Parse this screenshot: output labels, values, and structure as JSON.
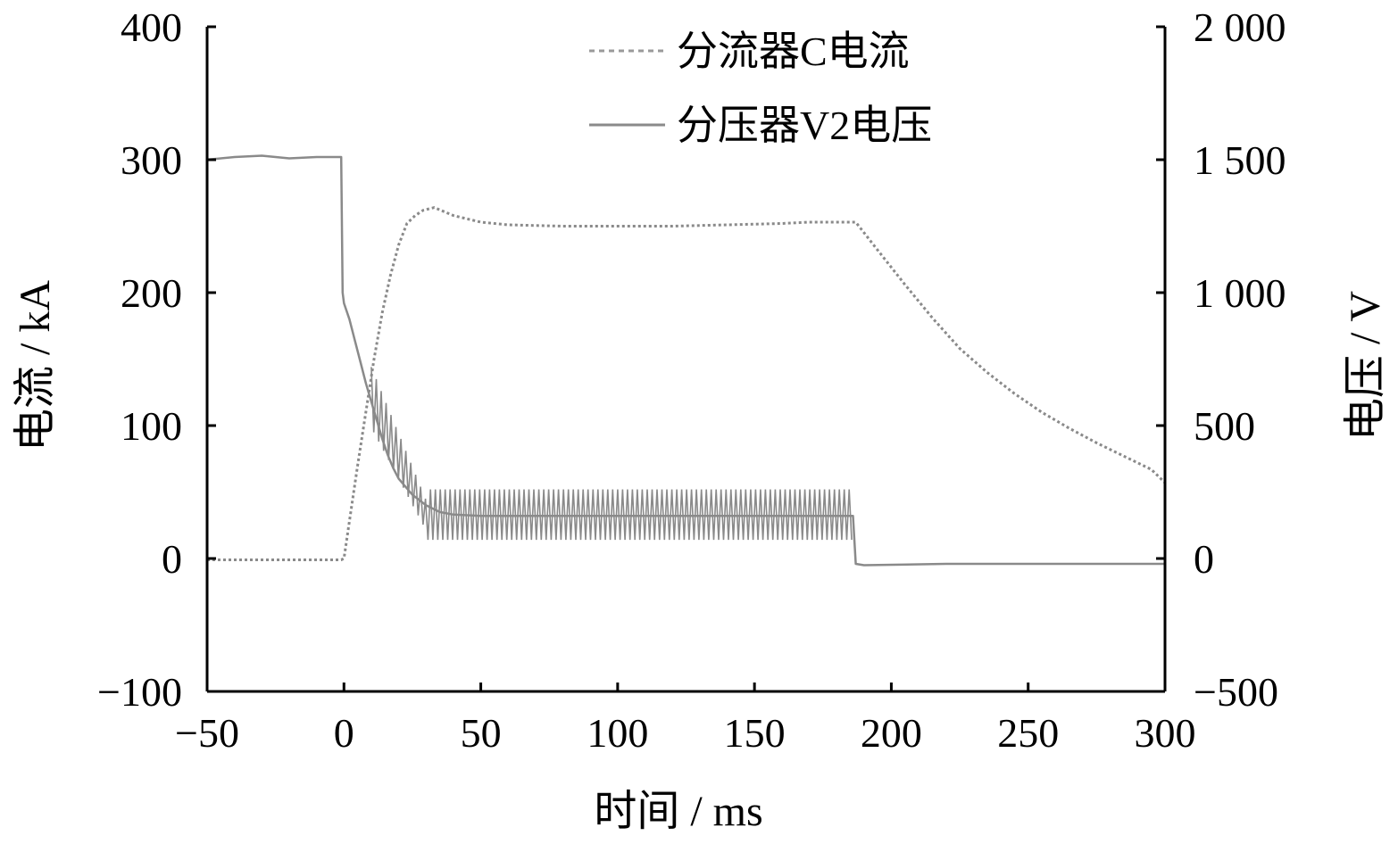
{
  "chart_data": {
    "type": "line",
    "title": "",
    "xlabel": "时间 / ms",
    "ylabel_left": "电流 / kA",
    "ylabel_right": "电压 / V",
    "xlim": [
      -50,
      300
    ],
    "ylim_left": [
      -100,
      400
    ],
    "ylim_right": [
      -500,
      2000
    ],
    "xticks": [
      "−50",
      "0",
      "50",
      "100",
      "150",
      "200",
      "250",
      "300"
    ],
    "yticks_left": [
      "−100",
      "0",
      "100",
      "200",
      "300",
      "400"
    ],
    "yticks_right": [
      "−500",
      "0",
      "500",
      "1 000",
      "1 500",
      "2 000"
    ],
    "legend_position": "top-center",
    "grid": false,
    "series": [
      {
        "name": "分流器C电流",
        "axis": "left",
        "style": "dotted",
        "color": "#8a8a8a",
        "x": [
          -50,
          -1,
          0,
          2,
          5,
          8,
          11,
          14,
          17,
          20,
          23,
          26,
          29,
          33,
          40,
          50,
          60,
          80,
          100,
          120,
          140,
          160,
          170,
          187,
          195,
          205,
          215,
          225,
          235,
          245,
          255,
          265,
          275,
          285,
          295,
          300
        ],
        "y": [
          -1,
          -1,
          0,
          28,
          70,
          110,
          150,
          185,
          213,
          236,
          252,
          258,
          262,
          264,
          258,
          253,
          251,
          250,
          250,
          250,
          251,
          252,
          253,
          253,
          232,
          206,
          181,
          158,
          140,
          124,
          110,
          98,
          87,
          77,
          67,
          57
        ]
      },
      {
        "name": "分压器V2电压",
        "axis": "right",
        "style": "solid",
        "color": "#8a8a8a",
        "x": [
          -50,
          -40,
          -30,
          -20,
          -10,
          -1,
          -0.5,
          0,
          2,
          4,
          6,
          8,
          10,
          12,
          14,
          16,
          18,
          20,
          25,
          30,
          35,
          40,
          50,
          100,
          150,
          186,
          187,
          190,
          220,
          260,
          300
        ],
        "y": [
          1500,
          1510,
          1515,
          1505,
          1510,
          1510,
          1000,
          960,
          900,
          820,
          740,
          660,
          590,
          520,
          450,
          390,
          340,
          300,
          240,
          200,
          175,
          165,
          160,
          160,
          160,
          160,
          -20,
          -25,
          -20,
          -20,
          -20
        ]
      }
    ]
  }
}
